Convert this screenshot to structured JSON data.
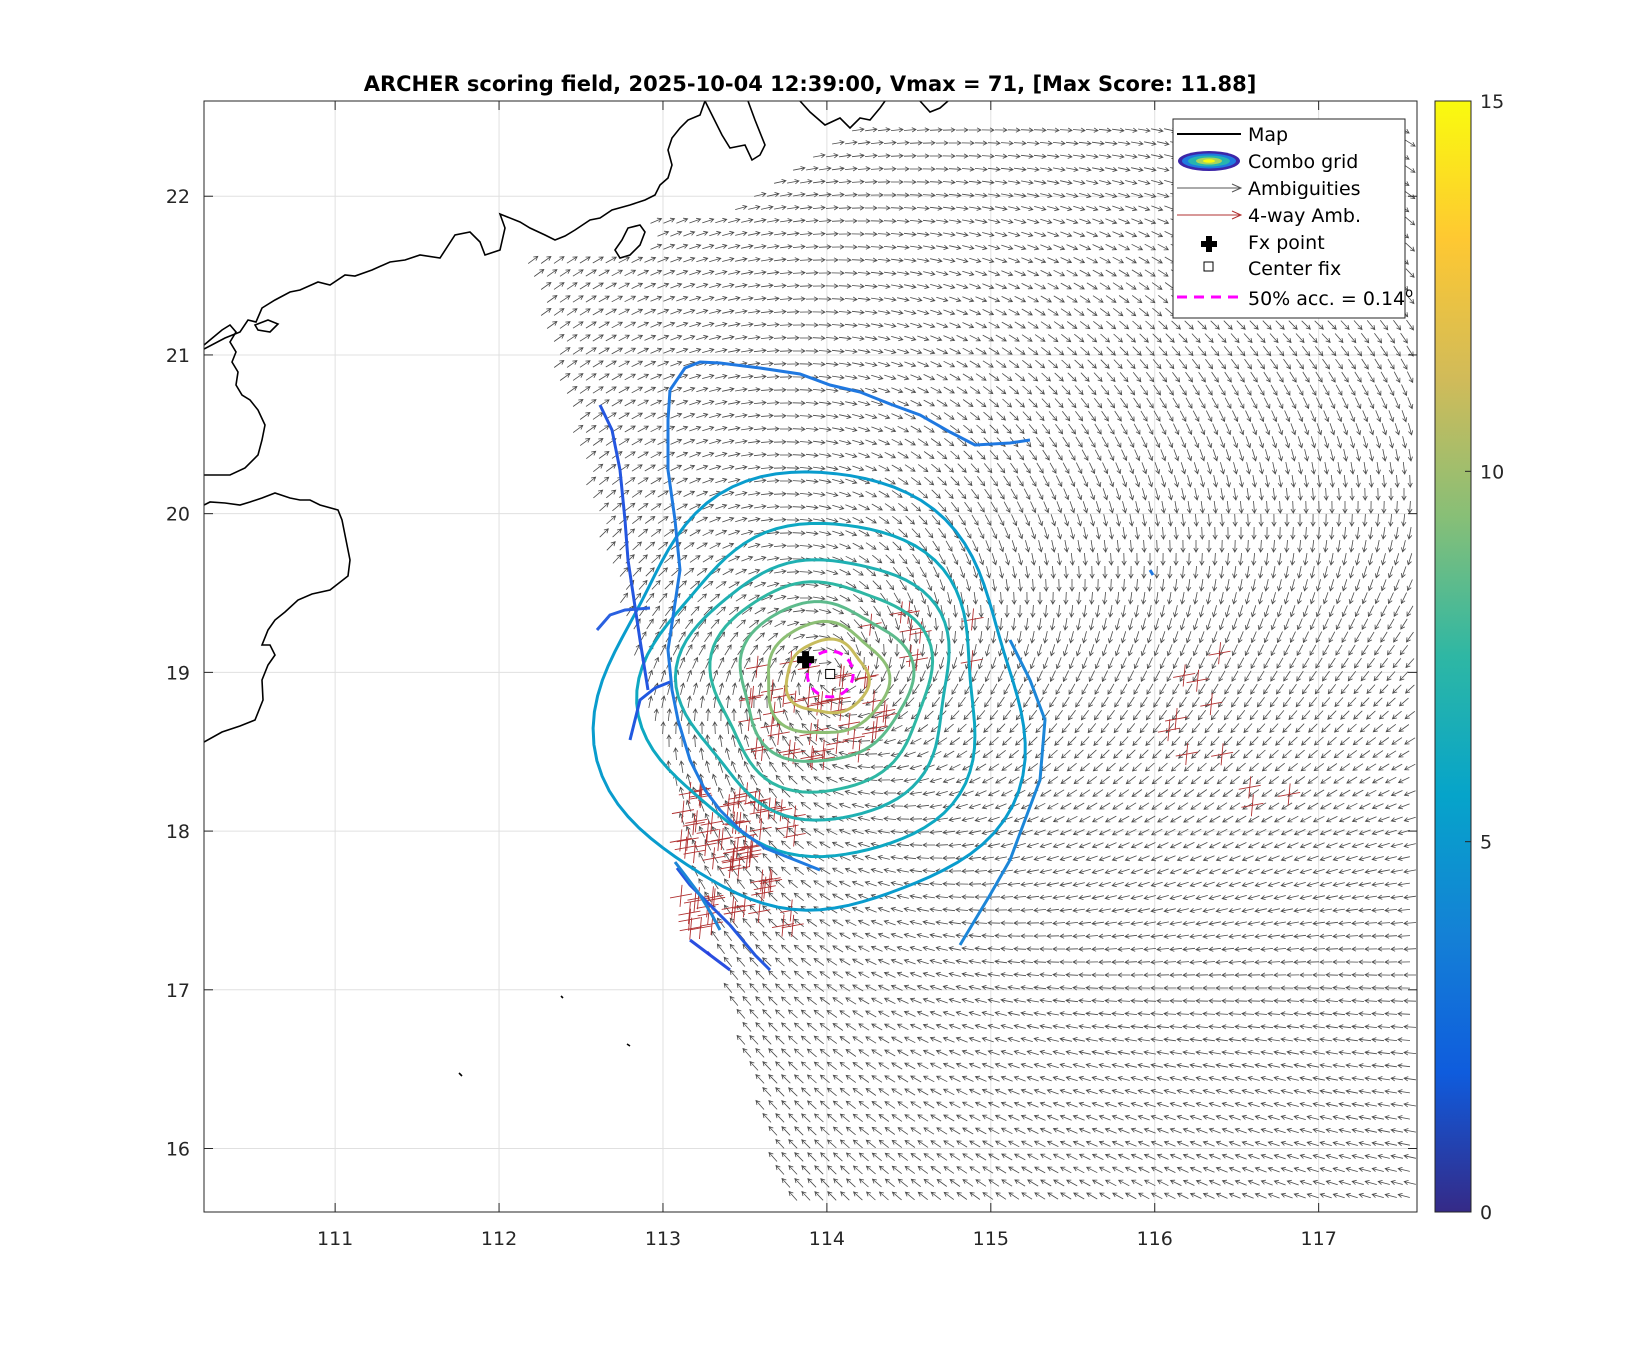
{
  "chart_data": {
    "type": "map-contour-vector",
    "title": "ARCHER scoring field, 2025-10-04 12:39:00, Vmax = 71, [Max Score: 11.88]",
    "xlim": [
      110.2,
      117.6
    ],
    "ylim": [
      15.6,
      22.6
    ],
    "xticks": [
      111,
      112,
      113,
      114,
      115,
      116,
      117
    ],
    "yticks": [
      16,
      17,
      18,
      19,
      20,
      21,
      22
    ],
    "grid": true,
    "legend_position": "top-right",
    "legend": [
      {
        "key": "map",
        "label": "Map",
        "color": "#000000"
      },
      {
        "key": "combo",
        "label": "Combo grid",
        "color": "#3d26a8"
      },
      {
        "key": "amb",
        "label": "Ambiguities",
        "color": "#555555"
      },
      {
        "key": "amb4",
        "label": "4-way Amb.",
        "color": "#b03030"
      },
      {
        "key": "fx",
        "label": "Fx point",
        "color": "#000000"
      },
      {
        "key": "center",
        "label": "Center fix",
        "color": "#000000"
      },
      {
        "key": "acc",
        "label": "50% acc. = 0.14",
        "superscript": "o",
        "color": "#ff00ff"
      }
    ],
    "colorbar": {
      "min": 0,
      "max": 15,
      "ticks": [
        0,
        5,
        10,
        15
      ]
    },
    "fx_point": {
      "lon": 113.87,
      "lat": 19.08
    },
    "center_fix": {
      "lon": 114.02,
      "lat": 18.99
    },
    "accuracy_radius_deg": 0.14,
    "max_score": 11.88,
    "contour_levels": [
      {
        "level": 11.0,
        "rx": 0.25,
        "ry": 0.23
      },
      {
        "level": 9.5,
        "rx": 0.37,
        "ry": 0.35
      },
      {
        "level": 8.5,
        "rx": 0.52,
        "ry": 0.5
      },
      {
        "level": 7.5,
        "rx": 0.66,
        "ry": 0.66
      },
      {
        "level": 6.8,
        "rx": 0.82,
        "ry": 0.82
      },
      {
        "level": 6.0,
        "rx": 1.02,
        "ry": 1.05
      },
      {
        "level": 5.2,
        "rx": 1.28,
        "ry": 1.38
      }
    ]
  }
}
